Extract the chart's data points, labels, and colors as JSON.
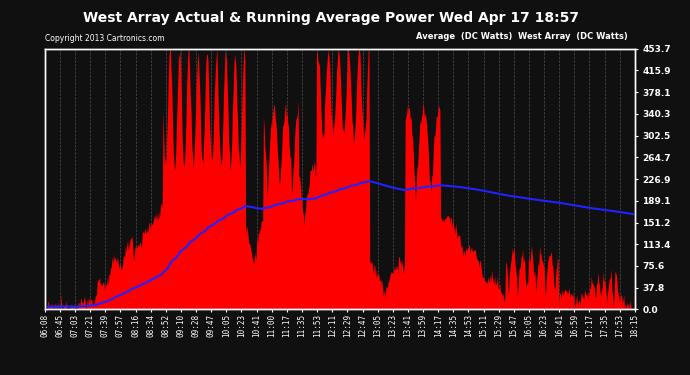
{
  "title": "West Array Actual & Running Average Power Wed Apr 17 18:57",
  "copyright": "Copyright 2013 Cartronics.com",
  "legend_avg": "Average  (DC Watts)",
  "legend_west": "West Array  (DC Watts)",
  "ylabel_right_ticks": [
    0.0,
    37.8,
    75.6,
    113.4,
    151.2,
    189.1,
    226.9,
    264.7,
    302.5,
    340.3,
    378.1,
    415.9,
    453.7
  ],
  "ymax": 453.7,
  "ymin": 0.0,
  "bg_color": "#101010",
  "plot_bg_color": "#101010",
  "grid_color": "#555555",
  "red_color": "#ff0000",
  "blue_color": "#2222ff",
  "title_color": "#ffffff",
  "tick_color": "#ffffff",
  "border_color": "#ffffff",
  "xtick_labels": [
    "06:08",
    "06:45",
    "07:03",
    "07:21",
    "07:39",
    "07:57",
    "08:16",
    "08:34",
    "08:52",
    "09:10",
    "09:28",
    "09:47",
    "10:05",
    "10:23",
    "10:41",
    "11:00",
    "11:17",
    "11:35",
    "11:53",
    "12:11",
    "12:29",
    "12:47",
    "13:05",
    "13:23",
    "13:41",
    "13:59",
    "14:17",
    "14:35",
    "14:53",
    "15:11",
    "15:29",
    "15:47",
    "16:05",
    "16:23",
    "16:41",
    "16:59",
    "17:17",
    "17:35",
    "17:53",
    "18:15"
  ],
  "avg_peak_watts": 195,
  "west_max_watts": 453.7
}
